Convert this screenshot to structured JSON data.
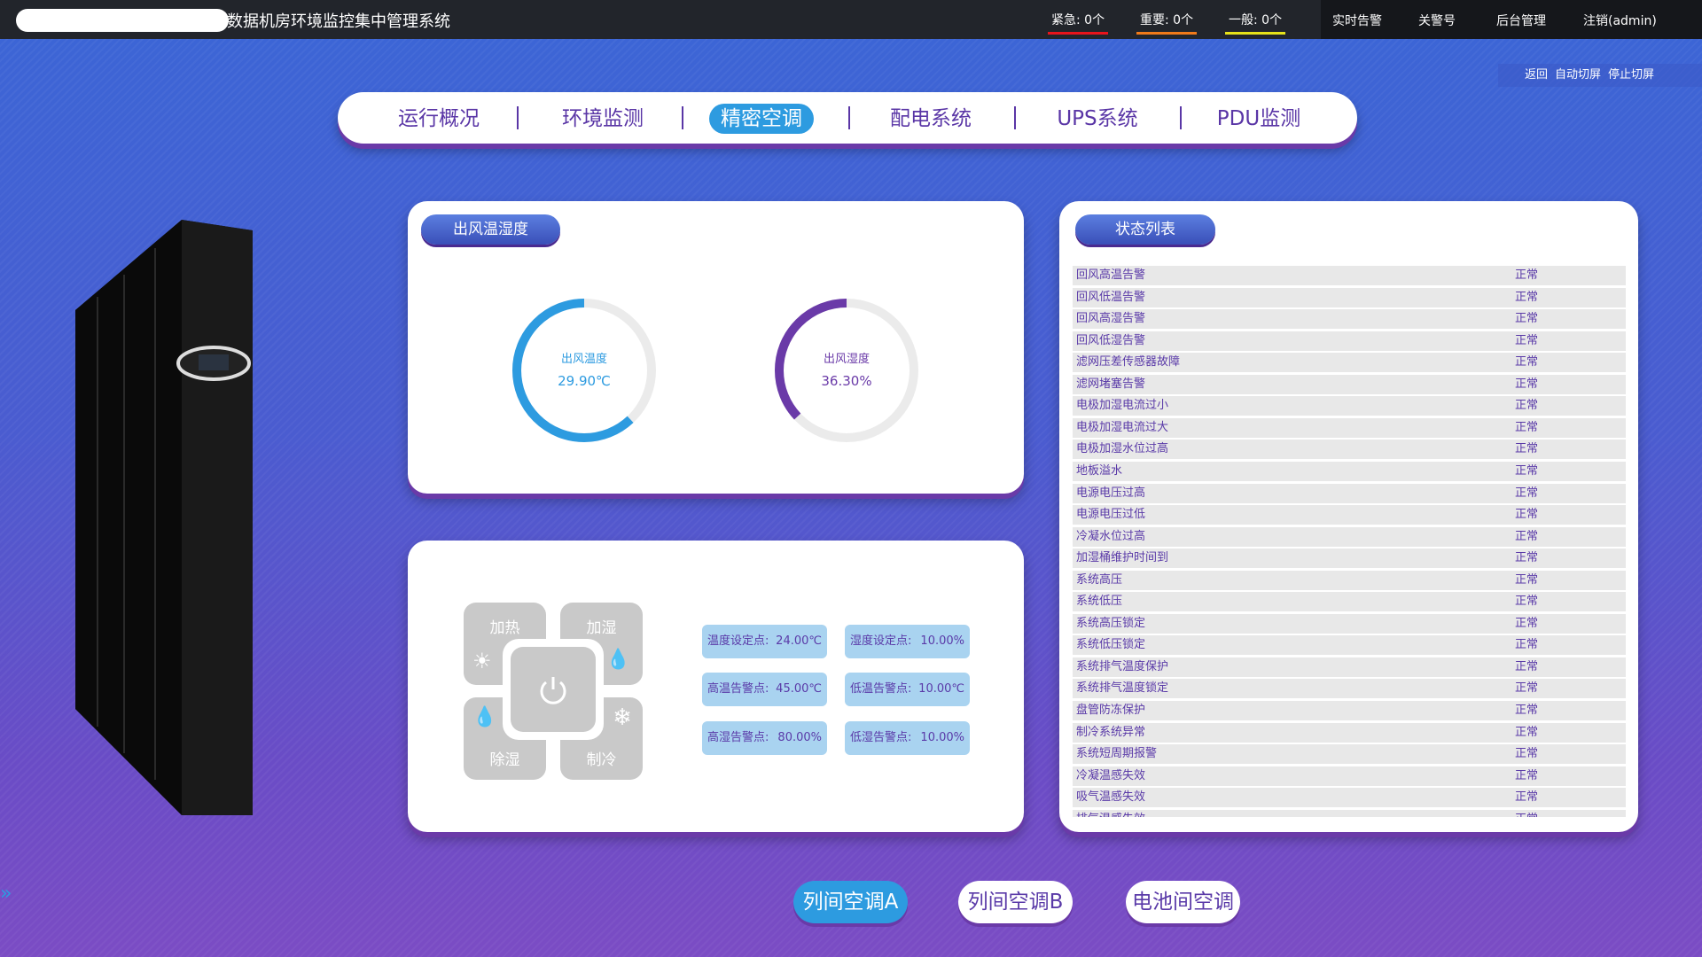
{
  "header": {
    "title": "数据机房环境监控集中管理系统",
    "alarms": [
      {
        "label": "紧急: 0个",
        "color": "#e8141c"
      },
      {
        "label": "重要: 0个",
        "color": "#f07a1a"
      },
      {
        "label": "一般: 0个",
        "color": "#e6e21a"
      }
    ],
    "menu": [
      "实时告警",
      "关警号",
      "后台管理",
      "注销(admin)"
    ]
  },
  "toolbar": [
    "返回",
    "自动切屏",
    "停止切屏"
  ],
  "nav": {
    "items": [
      "运行概况",
      "环境监测",
      "精密空调",
      "配电系统",
      "UPS系统",
      "PDU监测"
    ],
    "active": 2
  },
  "outlet_panel": {
    "title": "出风温湿度",
    "gauges": [
      {
        "label": "出风温度",
        "value": "29.90℃",
        "color": "#2d9be0"
      },
      {
        "label": "出风湿度",
        "value": "36.30%",
        "color": "#6a3aa8"
      }
    ]
  },
  "control_panel": {
    "buttons": [
      "加热",
      "加湿",
      "除湿",
      "制冷"
    ],
    "setpoints": [
      [
        "温度设定点:",
        "24.00℃"
      ],
      [
        "湿度设定点:",
        "10.00%"
      ],
      [
        "高温告警点:",
        "45.00℃"
      ],
      [
        "低温告警点:",
        "10.00℃"
      ],
      [
        "高湿告警点:",
        "80.00%"
      ],
      [
        "低湿告警点:",
        "10.00%"
      ]
    ]
  },
  "status_panel": {
    "title": "状态列表",
    "rows": [
      [
        "回风高温告警",
        "正常"
      ],
      [
        "回风低温告警",
        "正常"
      ],
      [
        "回风高湿告警",
        "正常"
      ],
      [
        "回风低湿告警",
        "正常"
      ],
      [
        "滤网压差传感器故障",
        "正常"
      ],
      [
        "滤网堵塞告警",
        "正常"
      ],
      [
        "电极加湿电流过小",
        "正常"
      ],
      [
        "电极加湿电流过大",
        "正常"
      ],
      [
        "电极加湿水位过高",
        "正常"
      ],
      [
        "地板溢水",
        "正常"
      ],
      [
        "电源电压过高",
        "正常"
      ],
      [
        "电源电压过低",
        "正常"
      ],
      [
        "冷凝水位过高",
        "正常"
      ],
      [
        "加湿桶维护时间到",
        "正常"
      ],
      [
        "系统高压",
        "正常"
      ],
      [
        "系统低压",
        "正常"
      ],
      [
        "系统高压锁定",
        "正常"
      ],
      [
        "系统低压锁定",
        "正常"
      ],
      [
        "系统排气温度保护",
        "正常"
      ],
      [
        "系统排气温度锁定",
        "正常"
      ],
      [
        "盘管防冻保护",
        "正常"
      ],
      [
        "制冷系统异常",
        "正常"
      ],
      [
        "系统短周期报警",
        "正常"
      ],
      [
        "冷凝温感失效",
        "正常"
      ],
      [
        "吸气温感失效",
        "正常"
      ],
      [
        "排气温感失效",
        "正常"
      ]
    ]
  },
  "units": {
    "items": [
      "列间空调A",
      "列间空调B",
      "电池间空调"
    ],
    "active": 0
  }
}
